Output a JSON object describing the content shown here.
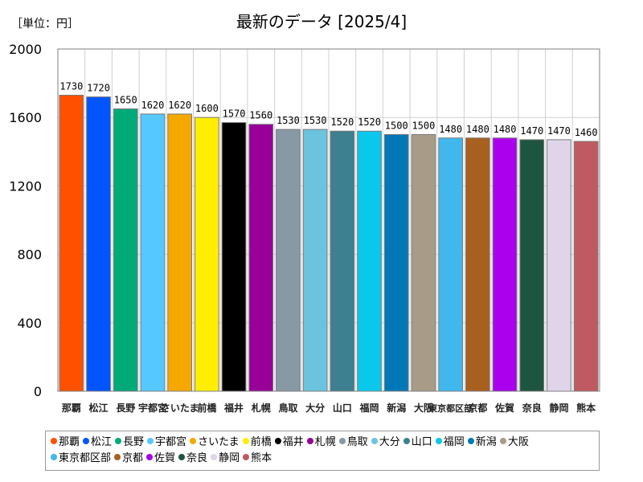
{
  "chart_data": {
    "type": "bar",
    "title": "最新のデータ [2025/4]",
    "unit_label": "［単位：円］",
    "ylim": [
      0,
      2000
    ],
    "yticks": [
      0,
      400,
      800,
      1200,
      1600,
      2000
    ],
    "categories": [
      "那覇",
      "松江",
      "長野",
      "宇都宮",
      "さいたま",
      "前橋",
      "福井",
      "札幌",
      "鳥取",
      "大分",
      "山口",
      "福岡",
      "新潟",
      "大阪",
      "東京都区部",
      "京都",
      "佐賀",
      "奈良",
      "静岡",
      "熊本"
    ],
    "values": [
      1730,
      1720,
      1650,
      1620,
      1620,
      1600,
      1570,
      1560,
      1530,
      1530,
      1520,
      1520,
      1500,
      1500,
      1480,
      1480,
      1480,
      1470,
      1470,
      1460
    ],
    "colors": [
      "#ff5000",
      "#0055ff",
      "#00aa77",
      "#55c8ff",
      "#f5a800",
      "#ffee00",
      "#000000",
      "#990099",
      "#8899a6",
      "#6cc3de",
      "#3d8090",
      "#0ac8ec",
      "#0078b8",
      "#a89c88",
      "#40b8ee",
      "#a86020",
      "#aa00ee",
      "#1e5540",
      "#e0d4ea",
      "#c05a62"
    ],
    "legend_position": "bottom"
  }
}
